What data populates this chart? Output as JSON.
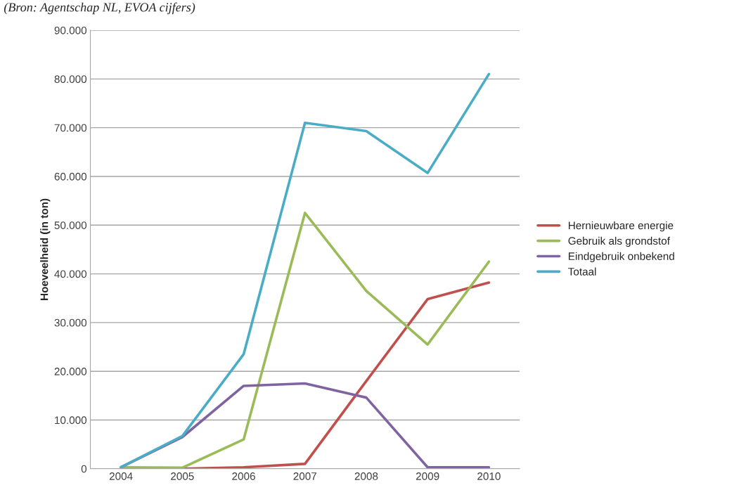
{
  "chart_data": {
    "type": "line",
    "categories": [
      "2004",
      "2005",
      "2006",
      "2007",
      "2008",
      "2009",
      "2010"
    ],
    "series": [
      {
        "name": "Hernieuwbare energie",
        "color": "#c0504d",
        "values": [
          0,
          0,
          300,
          1000,
          18000,
          34800,
          38200
        ]
      },
      {
        "name": "Gebruik als grondstof",
        "color": "#9bbb59",
        "values": [
          300,
          200,
          6000,
          52500,
          36500,
          25500,
          42500
        ]
      },
      {
        "name": "Eindgebruik onbekend",
        "color": "#8064a2",
        "values": [
          300,
          6500,
          17000,
          17500,
          14600,
          300,
          300
        ]
      },
      {
        "name": "Totaal",
        "color": "#4bacc6",
        "values": [
          300,
          6700,
          23500,
          71000,
          69300,
          60700,
          81000
        ]
      }
    ],
    "ylabel": "Hoeveelheid (in ton)",
    "ylim": [
      0,
      90000
    ],
    "yticks": [
      0,
      {
        "value": 10000,
        "label": "10.000"
      },
      {
        "value": 20000,
        "label": "20.000"
      },
      {
        "value": 30000,
        "label": "30.000"
      },
      {
        "value": 40000,
        "label": "40.000"
      },
      {
        "value": 50000,
        "label": "50.000"
      },
      {
        "value": 60000,
        "label": "60.000"
      },
      {
        "value": 70000,
        "label": "70.000"
      },
      {
        "value": 80000,
        "label": "80.000"
      },
      {
        "value": 90000,
        "label": "90.000"
      }
    ],
    "grid": "y",
    "legend": "right",
    "marker": "none",
    "line_style": "solid",
    "annotations": [
      "(Bron: Agentschap NL, EVOA cijfers)"
    ]
  }
}
